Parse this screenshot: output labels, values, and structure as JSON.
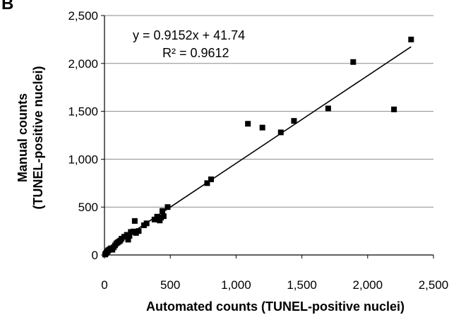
{
  "panel_label": "B",
  "chart_data": {
    "type": "scatter",
    "title": "",
    "xlabel": "Automated counts (TUNEL-positive nuclei)",
    "ylabel_line1": "Manual counts",
    "ylabel_line2": "(TUNEL-positive nuclei)",
    "xlim": [
      0,
      2500
    ],
    "ylim": [
      0,
      2500
    ],
    "x_ticks": [
      0,
      500,
      1000,
      1500,
      2000,
      2500
    ],
    "y_ticks": [
      0,
      500,
      1000,
      1500,
      2000,
      2500
    ],
    "x_tick_labels": [
      "0",
      "500",
      "1,000",
      "1,500",
      "2,000",
      "2,500"
    ],
    "y_tick_labels": [
      "0",
      "500",
      "1,000",
      "1,500",
      "2,000",
      "2,500"
    ],
    "grid": "horizontal",
    "marker": "square",
    "marker_color": "#000000",
    "points": [
      {
        "x": 5,
        "y": 5
      },
      {
        "x": 10,
        "y": 15
      },
      {
        "x": 15,
        "y": 25
      },
      {
        "x": 20,
        "y": 35
      },
      {
        "x": 25,
        "y": 40
      },
      {
        "x": 30,
        "y": 50
      },
      {
        "x": 40,
        "y": 60
      },
      {
        "x": 50,
        "y": 70
      },
      {
        "x": 60,
        "y": 55
      },
      {
        "x": 70,
        "y": 80
      },
      {
        "x": 80,
        "y": 100
      },
      {
        "x": 90,
        "y": 120
      },
      {
        "x": 100,
        "y": 130
      },
      {
        "x": 110,
        "y": 140
      },
      {
        "x": 120,
        "y": 150
      },
      {
        "x": 130,
        "y": 170
      },
      {
        "x": 150,
        "y": 190
      },
      {
        "x": 170,
        "y": 210
      },
      {
        "x": 180,
        "y": 160
      },
      {
        "x": 190,
        "y": 200
      },
      {
        "x": 200,
        "y": 240
      },
      {
        "x": 220,
        "y": 245
      },
      {
        "x": 240,
        "y": 230
      },
      {
        "x": 230,
        "y": 355
      },
      {
        "x": 260,
        "y": 250
      },
      {
        "x": 300,
        "y": 310
      },
      {
        "x": 320,
        "y": 330
      },
      {
        "x": 380,
        "y": 370
      },
      {
        "x": 400,
        "y": 400
      },
      {
        "x": 420,
        "y": 360
      },
      {
        "x": 430,
        "y": 390
      },
      {
        "x": 440,
        "y": 460
      },
      {
        "x": 450,
        "y": 405
      },
      {
        "x": 480,
        "y": 500
      },
      {
        "x": 780,
        "y": 750
      },
      {
        "x": 810,
        "y": 790
      },
      {
        "x": 1090,
        "y": 1370
      },
      {
        "x": 1200,
        "y": 1330
      },
      {
        "x": 1340,
        "y": 1280
      },
      {
        "x": 1440,
        "y": 1400
      },
      {
        "x": 1700,
        "y": 1530
      },
      {
        "x": 1890,
        "y": 2015
      },
      {
        "x": 2200,
        "y": 1520
      },
      {
        "x": 2330,
        "y": 2250
      }
    ],
    "trendline": {
      "slope": 0.9152,
      "intercept": 41.74,
      "x_range": [
        0,
        2330
      ]
    },
    "equation_text": "y = 0.9152x + 41.74",
    "r2_text": "R² = 0.9612"
  }
}
